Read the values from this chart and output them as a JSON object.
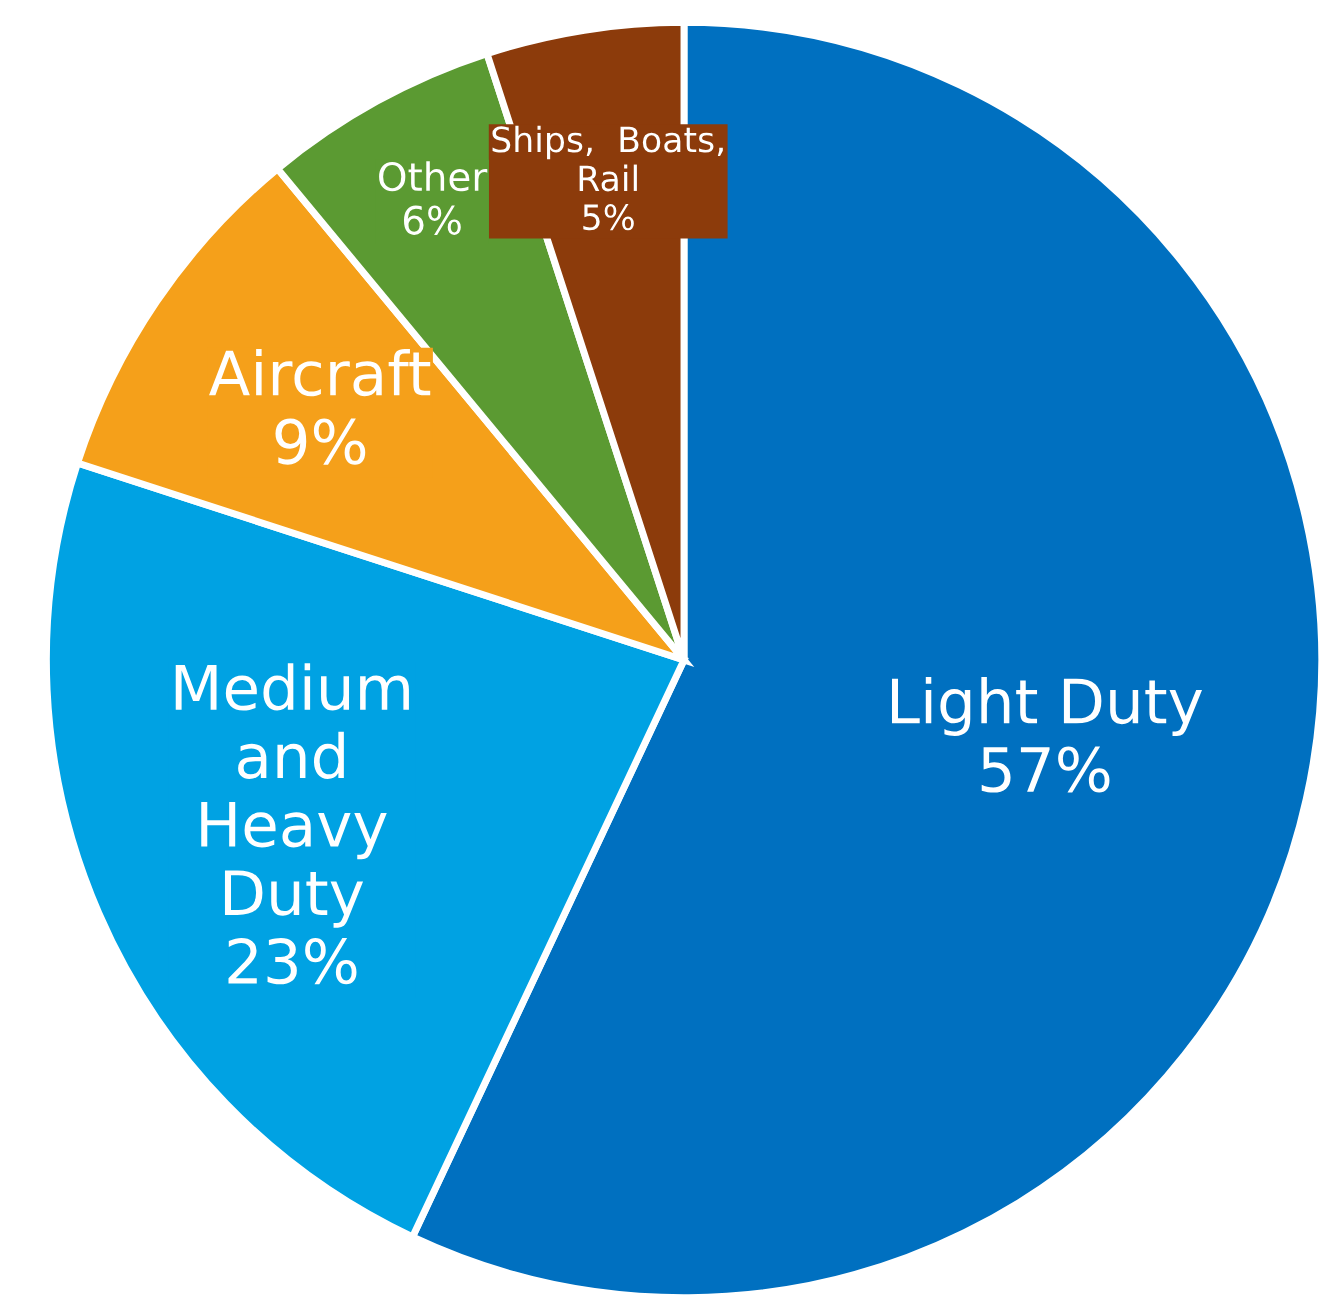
{
  "chart_data": {
    "type": "pie",
    "categories": [
      "Light Duty\n57%",
      "Medium\nand\nHeavy\nDuty\n23%",
      "Aircraft\n9%",
      "Other\n6%",
      "Ships,  Boats,\nRail\n5%"
    ],
    "values": [
      57,
      23,
      9,
      6,
      5
    ],
    "colors": [
      "#0070c0",
      "#00a2e3",
      "#f5a01a",
      "#5b9a32",
      "#8c3b0b"
    ]
  }
}
